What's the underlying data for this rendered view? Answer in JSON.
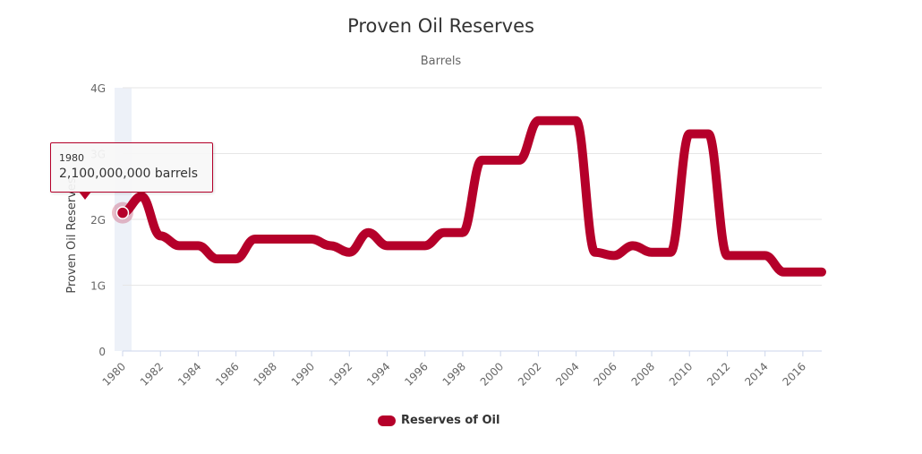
{
  "chart_data": {
    "type": "line",
    "title": "Proven Oil Reserves",
    "subtitle": "Barrels",
    "ylabel": "Proven Oil Reserves",
    "xlabel": "",
    "x_ticks": [
      "1980",
      "1982",
      "1984",
      "1986",
      "1988",
      "1990",
      "1992",
      "1994",
      "1996",
      "1998",
      "2000",
      "2002",
      "2004",
      "2006",
      "2008",
      "2010",
      "2012",
      "2014",
      "2016"
    ],
    "y_ticks": [
      {
        "value": 0,
        "label": "0"
      },
      {
        "value": 1000000000,
        "label": "1G"
      },
      {
        "value": 2000000000,
        "label": "2G"
      },
      {
        "value": 3000000000,
        "label": "3G"
      },
      {
        "value": 4000000000,
        "label": "4G"
      }
    ],
    "ylim": [
      0,
      4000000000
    ],
    "xlim": [
      1980,
      2017
    ],
    "grid": true,
    "legend_position": "bottom-center",
    "x": [
      1980,
      1981,
      1982,
      1983,
      1984,
      1985,
      1986,
      1987,
      1988,
      1989,
      1990,
      1991,
      1992,
      1993,
      1994,
      1995,
      1996,
      1997,
      1998,
      1999,
      2000,
      2001,
      2002,
      2003,
      2004,
      2005,
      2006,
      2007,
      2008,
      2009,
      2010,
      2011,
      2012,
      2013,
      2014,
      2015,
      2016,
      2017
    ],
    "series": [
      {
        "name": "Reserves of Oil",
        "color": "#b5002a",
        "values": [
          2100000000,
          2350000000,
          1750000000,
          1600000000,
          1600000000,
          1400000000,
          1400000000,
          1700000000,
          1700000000,
          1700000000,
          1700000000,
          1600000000,
          1500000000,
          1800000000,
          1600000000,
          1600000000,
          1600000000,
          1800000000,
          1800000000,
          2900000000,
          2900000000,
          2900000000,
          3500000000,
          3500000000,
          3500000000,
          1500000000,
          1450000000,
          1600000000,
          1500000000,
          1500000000,
          3300000000,
          3300000000,
          1450000000,
          1450000000,
          1450000000,
          1200000000,
          1200000000,
          1200000000
        ]
      }
    ],
    "tooltip": {
      "x_label": "1980",
      "y_label": "2,100,000,000 barrels",
      "index": 0
    }
  }
}
